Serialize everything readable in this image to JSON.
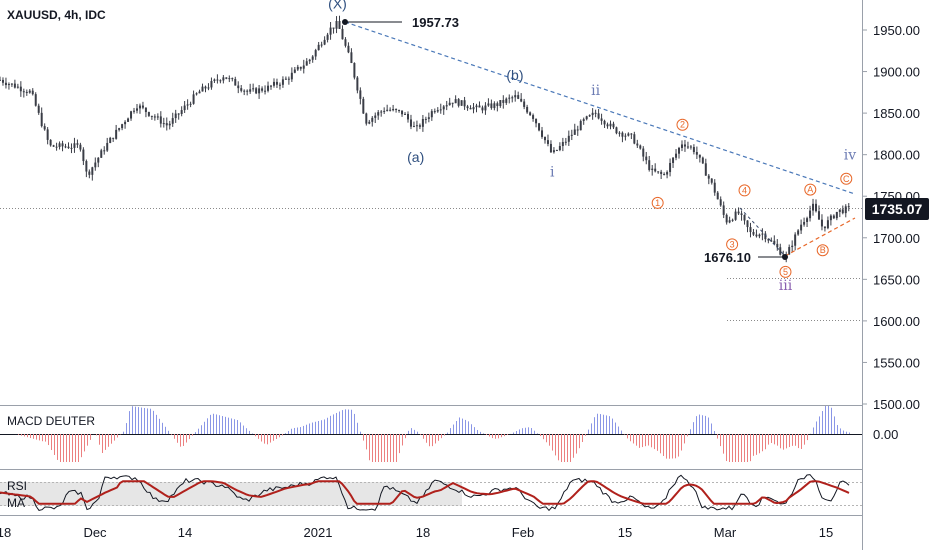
{
  "header": {
    "symbol_title": "XAUUSD, 4h, IDC"
  },
  "price_badge": {
    "value": "1735.07",
    "background": "#131722"
  },
  "colors": {
    "candle": "#3a3d46",
    "trendline_blue": "#4a78b8",
    "trendline_orange": "#e8682a",
    "macd_positive": "#8a96e6",
    "macd_negative": "#ec8080",
    "rsi_line": "#131722",
    "rsi_ma": "#b0211c",
    "rsi_band": "#e6e6e6"
  },
  "chart_data": [
    {
      "type": "candlestick",
      "title": "XAUUSD, 4h, IDC",
      "x_ticks": [
        "18",
        "Dec",
        "14",
        "2021",
        "18",
        "Feb",
        "15",
        "Mar",
        "15"
      ],
      "y_ticks": [
        "1500.00",
        "1550.00",
        "1600.00",
        "1650.00",
        "1700.00",
        "1750.00",
        "1800.00",
        "1850.00",
        "1900.00",
        "1950.00"
      ],
      "ylim": [
        1500,
        1985
      ],
      "current_price": 1735.07,
      "price_path_keypoints": [
        {
          "t": 0.0,
          "price": 1890
        },
        {
          "t": 2.5,
          "price": 1875
        },
        {
          "t": 4.0,
          "price": 1810
        },
        {
          "t": 6.5,
          "price": 1810
        },
        {
          "t": 7.0,
          "price": 1775
        },
        {
          "t": 8.5,
          "price": 1810
        },
        {
          "t": 11.0,
          "price": 1860
        },
        {
          "t": 13.5,
          "price": 1835
        },
        {
          "t": 16.0,
          "price": 1875
        },
        {
          "t": 18.0,
          "price": 1895
        },
        {
          "t": 20.0,
          "price": 1875
        },
        {
          "t": 21.5,
          "price": 1880
        },
        {
          "t": 23.0,
          "price": 1890
        },
        {
          "t": 25.0,
          "price": 1915
        },
        {
          "t": 26.5,
          "price": 1950
        },
        {
          "t": 27.2,
          "price": 1957.73
        },
        {
          "t": 28.3,
          "price": 1910
        },
        {
          "t": 29.5,
          "price": 1840
        },
        {
          "t": 31.0,
          "price": 1855
        },
        {
          "t": 32.5,
          "price": 1850
        },
        {
          "t": 33.5,
          "price": 1830
        },
        {
          "t": 35.0,
          "price": 1855
        },
        {
          "t": 36.5,
          "price": 1865
        },
        {
          "t": 38.5,
          "price": 1855
        },
        {
          "t": 40.0,
          "price": 1860
        },
        {
          "t": 41.5,
          "price": 1870
        },
        {
          "t": 43.0,
          "price": 1845
        },
        {
          "t": 44.5,
          "price": 1800
        },
        {
          "t": 45.5,
          "price": 1815
        },
        {
          "t": 47.0,
          "price": 1840
        },
        {
          "t": 48.0,
          "price": 1850
        },
        {
          "t": 49.5,
          "price": 1830
        },
        {
          "t": 51.0,
          "price": 1820
        },
        {
          "t": 52.5,
          "price": 1780
        },
        {
          "t": 53.5,
          "price": 1775
        },
        {
          "t": 55.0,
          "price": 1815
        },
        {
          "t": 56.0,
          "price": 1805
        },
        {
          "t": 57.5,
          "price": 1760
        },
        {
          "t": 58.5,
          "price": 1720
        },
        {
          "t": 59.5,
          "price": 1730
        },
        {
          "t": 60.5,
          "price": 1705
        },
        {
          "t": 61.5,
          "price": 1705
        },
        {
          "t": 62.5,
          "price": 1690
        },
        {
          "t": 63.3,
          "price": 1676.1
        },
        {
          "t": 64.5,
          "price": 1715
        },
        {
          "t": 65.5,
          "price": 1738
        },
        {
          "t": 66.3,
          "price": 1712
        },
        {
          "t": 67.5,
          "price": 1732
        },
        {
          "t": 68.5,
          "price": 1735.07
        }
      ],
      "annotations": {
        "high_label": "1957.73",
        "low_label": "1676.10",
        "waves": [
          {
            "text": "(X)",
            "t": 27.2,
            "price": 1982,
            "style": "blue"
          },
          {
            "text": "(a)",
            "t": 33.5,
            "price": 1797,
            "style": "blue"
          },
          {
            "text": "(b)",
            "t": 41.5,
            "price": 1896,
            "style": "blue"
          },
          {
            "text": "i",
            "t": 44.5,
            "price": 1780,
            "style": "gray"
          },
          {
            "text": "ii",
            "t": 48.0,
            "price": 1878,
            "style": "gray"
          },
          {
            "text": "iii",
            "t": 63.3,
            "price": 1643,
            "style": "purple"
          },
          {
            "text": "iv",
            "t": 68.5,
            "price": 1800,
            "style": "gray"
          },
          {
            "text": "1",
            "t": 53.0,
            "price": 1742,
            "style": "orange"
          },
          {
            "text": "2",
            "t": 55.0,
            "price": 1836,
            "style": "orange"
          },
          {
            "text": "3",
            "t": 59.0,
            "price": 1692,
            "style": "orange"
          },
          {
            "text": "4",
            "t": 60.0,
            "price": 1757,
            "style": "orange"
          },
          {
            "text": "5",
            "t": 63.3,
            "price": 1659,
            "style": "orange"
          },
          {
            "text": "A",
            "t": 65.3,
            "price": 1758,
            "style": "orange"
          },
          {
            "text": "B",
            "t": 66.3,
            "price": 1685,
            "style": "orange"
          },
          {
            "text": "C",
            "t": 68.2,
            "price": 1771,
            "style": "orange"
          }
        ]
      }
    },
    {
      "type": "histogram",
      "title": "MACD DEUTER",
      "y_ticks": [
        "0.00"
      ]
    },
    {
      "type": "line",
      "title": "RSI",
      "legend": [
        "MA"
      ]
    }
  ]
}
